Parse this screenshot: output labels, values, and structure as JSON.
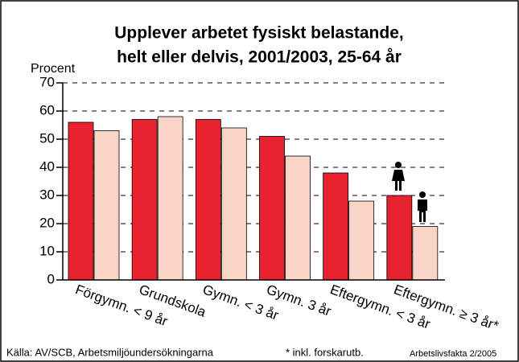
{
  "chart_data": {
    "type": "bar",
    "title": [
      "Upplever arbetet fysiskt belastande,",
      "helt eller delvis, 2001/2003, 25-64 år"
    ],
    "y_label": "Procent",
    "categories": [
      "Förgymn. < 9 år",
      "Grundskola",
      "Gymn. < 3 år",
      "Gymn. 3 år",
      "Eftergymn. < 3 år",
      "Eftergymn. ≥ 3 år*"
    ],
    "series": [
      {
        "color": "#e8232f",
        "values": [
          56,
          57,
          57,
          51,
          38,
          30
        ]
      },
      {
        "color": "#f9d5c8",
        "values": [
          53,
          58,
          54,
          44,
          28,
          19
        ]
      }
    ],
    "ylim": [
      0,
      70
    ],
    "yticks": [
      0,
      10,
      20,
      30,
      40,
      50,
      60,
      70
    ],
    "grid": true,
    "source": "Källa: AV/SCB, Arbetsmiljöundersökningarna",
    "note": "* inkl. forskarutb.",
    "credit": "Arbetslivsfakta 2/2005"
  }
}
